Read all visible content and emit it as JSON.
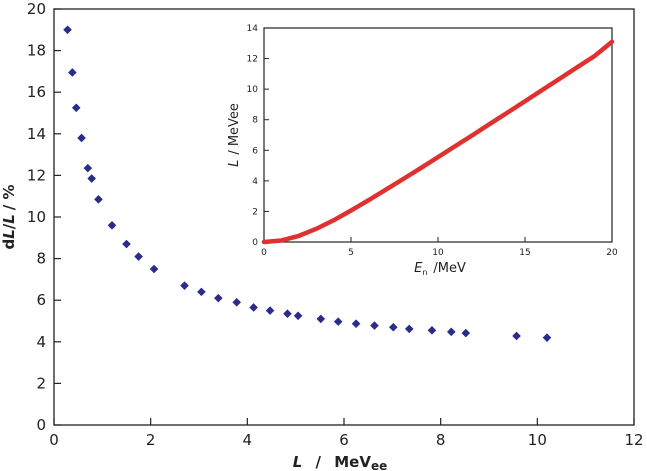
{
  "chart_data": [
    {
      "type": "scatter",
      "xlabel": {
        "main": "L",
        "sep": "/",
        "unit": "MeV",
        "sub": "ee"
      },
      "ylabel": {
        "a": "d",
        "b": "L",
        "c": "/",
        "d": "L",
        "e": "/ %"
      },
      "xlim": [
        0,
        12
      ],
      "ylim": [
        0,
        20
      ],
      "xticks": [
        "0",
        "2",
        "4",
        "6",
        "8",
        "10",
        "12"
      ],
      "yticks": [
        "0",
        "2",
        "4",
        "6",
        "8",
        "10",
        "12",
        "14",
        "16",
        "18",
        "20"
      ],
      "marker_color": "#2b2b8c",
      "series": [
        {
          "name": "dL/L",
          "x": [
            0.28,
            0.38,
            0.46,
            0.57,
            0.7,
            0.78,
            0.92,
            1.2,
            1.5,
            1.75,
            2.07,
            2.7,
            3.05,
            3.4,
            3.78,
            4.13,
            4.47,
            4.83,
            5.05,
            5.52,
            5.88,
            6.25,
            6.63,
            7.02,
            7.35,
            7.82,
            8.22,
            8.52,
            9.57,
            10.2
          ],
          "y": [
            19.0,
            16.95,
            15.25,
            13.8,
            12.35,
            11.85,
            10.85,
            9.6,
            8.7,
            8.1,
            7.5,
            6.7,
            6.4,
            6.1,
            5.9,
            5.65,
            5.5,
            5.35,
            5.25,
            5.1,
            4.97,
            4.87,
            4.78,
            4.7,
            4.62,
            4.55,
            4.48,
            4.42,
            4.28,
            4.2
          ]
        }
      ]
    },
    {
      "type": "line",
      "xlabel": {
        "main": "E",
        "sub": "n",
        "unit": "/MeV"
      },
      "ylabel": {
        "main": "L",
        "unit": "/ MeVee"
      },
      "xlim": [
        0,
        20
      ],
      "ylim": [
        0,
        14
      ],
      "xticks": [
        "0",
        "5",
        "10",
        "15",
        "20"
      ],
      "yticks": [
        "0",
        "2",
        "4",
        "6",
        "8",
        "10",
        "12",
        "14"
      ],
      "line_color": "#e03030",
      "series": [
        {
          "name": "L(En)",
          "x": [
            0,
            1,
            2,
            3,
            4,
            5,
            6,
            7,
            8,
            9,
            10,
            11,
            12,
            13,
            14,
            15,
            16,
            17,
            18,
            19,
            20
          ],
          "y": [
            0.0,
            0.1,
            0.4,
            0.86,
            1.42,
            2.06,
            2.73,
            3.42,
            4.12,
            4.83,
            5.55,
            6.28,
            7.0,
            7.74,
            8.47,
            9.21,
            9.95,
            10.69,
            11.43,
            12.17,
            13.1
          ]
        }
      ]
    }
  ]
}
